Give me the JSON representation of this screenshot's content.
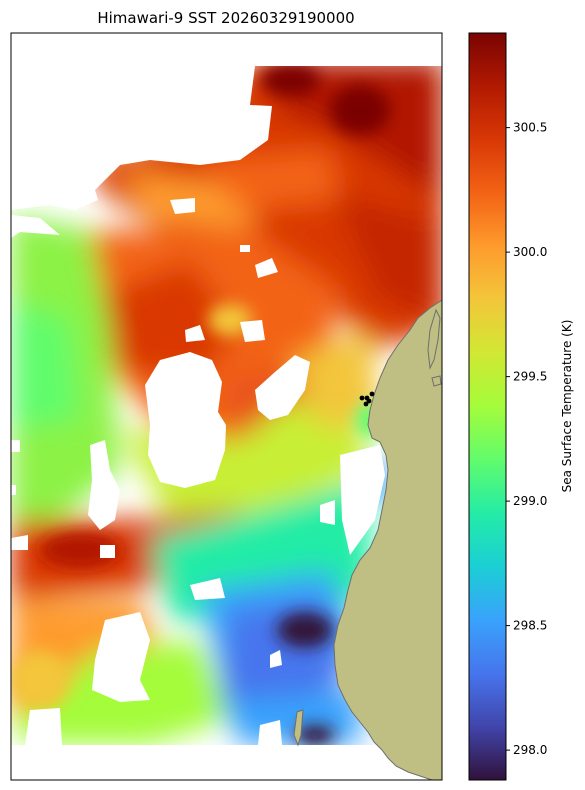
{
  "chart_data": {
    "type": "heatmap",
    "title": "Himawari-9 SST 20260329190000",
    "colorbar": {
      "label": "Sea Surface Temperature (K)",
      "range": [
        297.88,
        300.88
      ],
      "ticks": [
        298.0,
        298.5,
        299.0,
        299.5,
        300.0,
        300.5
      ],
      "tick_labels": [
        "298.0",
        "298.5",
        "299.0",
        "299.5",
        "300.0",
        "300.5"
      ],
      "colormap": "turbo",
      "stops": [
        "#30123b",
        "#4145ab",
        "#4675ed",
        "#39a2fc",
        "#1bcfd4",
        "#24eca6",
        "#61fc6c",
        "#a4fc3b",
        "#d1e834",
        "#f3c63a",
        "#fe9b2d",
        "#f36315",
        "#d93806",
        "#b11901",
        "#7a0402"
      ]
    },
    "colors": {
      "land": "#bfbf84",
      "coast": "#6e6e6e",
      "no_data": "#ffffff"
    },
    "markers": {
      "count": 5,
      "color": "#000000"
    }
  }
}
